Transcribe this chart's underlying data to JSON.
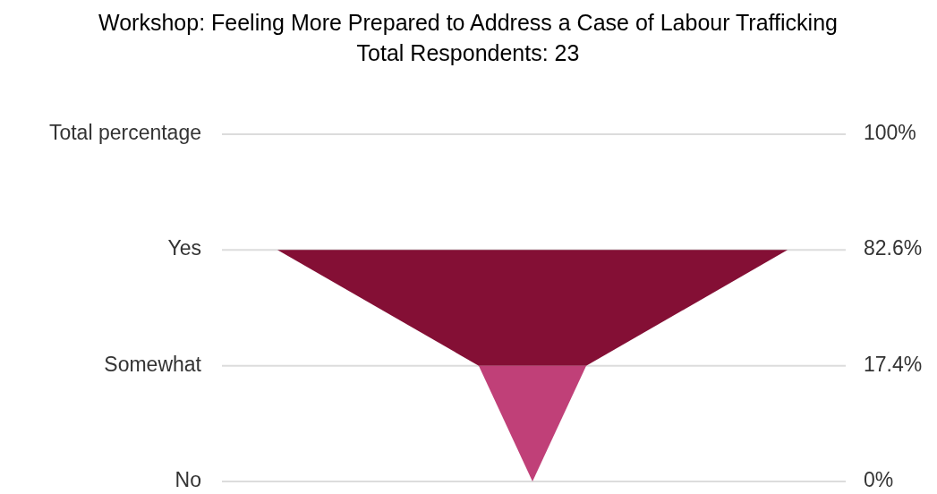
{
  "chart_data": {
    "type": "other",
    "title": "Workshop: Feeling More Prepared to Address a Case of Labour Trafficking",
    "subtitle": "Total Respondents: 23",
    "categories": [
      "Total percentage",
      "Yes",
      "Somewhat",
      "No"
    ],
    "values": [
      100,
      82.6,
      17.4,
      0
    ],
    "value_labels": [
      "100%",
      "82.6%",
      "17.4%",
      "0%"
    ],
    "colors": [
      null,
      "#840f35",
      "#c04078",
      null
    ]
  }
}
